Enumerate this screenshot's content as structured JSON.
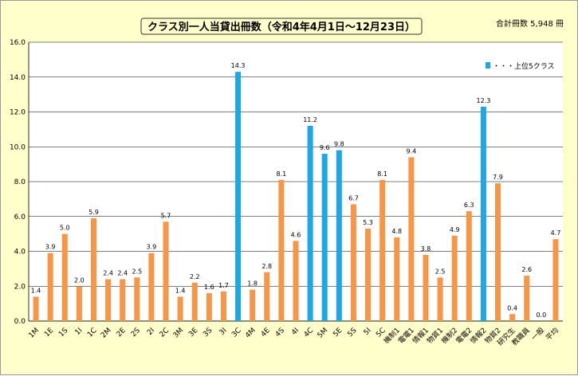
{
  "chart_data": {
    "type": "bar",
    "title": "クラス別一人当貸出冊数（令和4年4月1日～12月23日）",
    "total_label": "合計冊数 5,948 冊",
    "legend": "・・・上位5クラス",
    "legend_position": "top-right",
    "grid": true,
    "ylim": [
      0,
      16
    ],
    "yticks": [
      "0.0",
      "2.0",
      "4.0",
      "6.0",
      "8.0",
      "10.0",
      "12.0",
      "14.0",
      "16.0"
    ],
    "categories": [
      "1M",
      "1E",
      "1S",
      "1I",
      "1C",
      "2M",
      "2E",
      "2S",
      "2I",
      "2C",
      "3M",
      "3E",
      "3S",
      "3I",
      "3C",
      "4M",
      "4E",
      "4S",
      "4I",
      "4C",
      "5M",
      "5E",
      "5S",
      "5I",
      "5C",
      "機制1",
      "電電1",
      "情報1",
      "物質1",
      "機制2",
      "電電2",
      "情報2",
      "物質2",
      "研究生",
      "教職員",
      "一般",
      "平均"
    ],
    "values": [
      1.4,
      3.9,
      5.0,
      2.0,
      5.9,
      2.4,
      2.4,
      2.5,
      3.9,
      5.7,
      1.4,
      2.2,
      1.6,
      1.7,
      14.3,
      1.8,
      2.8,
      8.1,
      4.6,
      11.2,
      9.6,
      9.8,
      6.7,
      5.3,
      8.1,
      4.8,
      9.4,
      3.8,
      2.5,
      4.9,
      6.3,
      12.3,
      7.9,
      0.4,
      2.6,
      0.0,
      4.7
    ],
    "value_labels": [
      "1.4",
      "3.9",
      "5.0",
      "2.0",
      "5.9",
      "2.4",
      "2.4",
      "2.5",
      "3.9",
      "5.7",
      "1.4",
      "2.2",
      "1.6",
      "1.7",
      "14.3",
      "1.8",
      "2.8",
      "8.1",
      "4.6",
      "11.2",
      "9.6",
      "9.8",
      "6.7",
      "5.3",
      "8.1",
      "4.8",
      "9.4",
      "3.8",
      "2.5",
      "4.9",
      "6.3",
      "12.3",
      "7.9",
      "0.4",
      "2.6",
      "0.0",
      "4.7"
    ],
    "top5": [
      14,
      19,
      20,
      21,
      31
    ],
    "colors": {
      "normal": "#F79646",
      "top": "#1EA7E6",
      "background": "#FFFFCC",
      "plot": "#FFFFFF",
      "grid": "#000000",
      "title_border": "#333333"
    }
  }
}
